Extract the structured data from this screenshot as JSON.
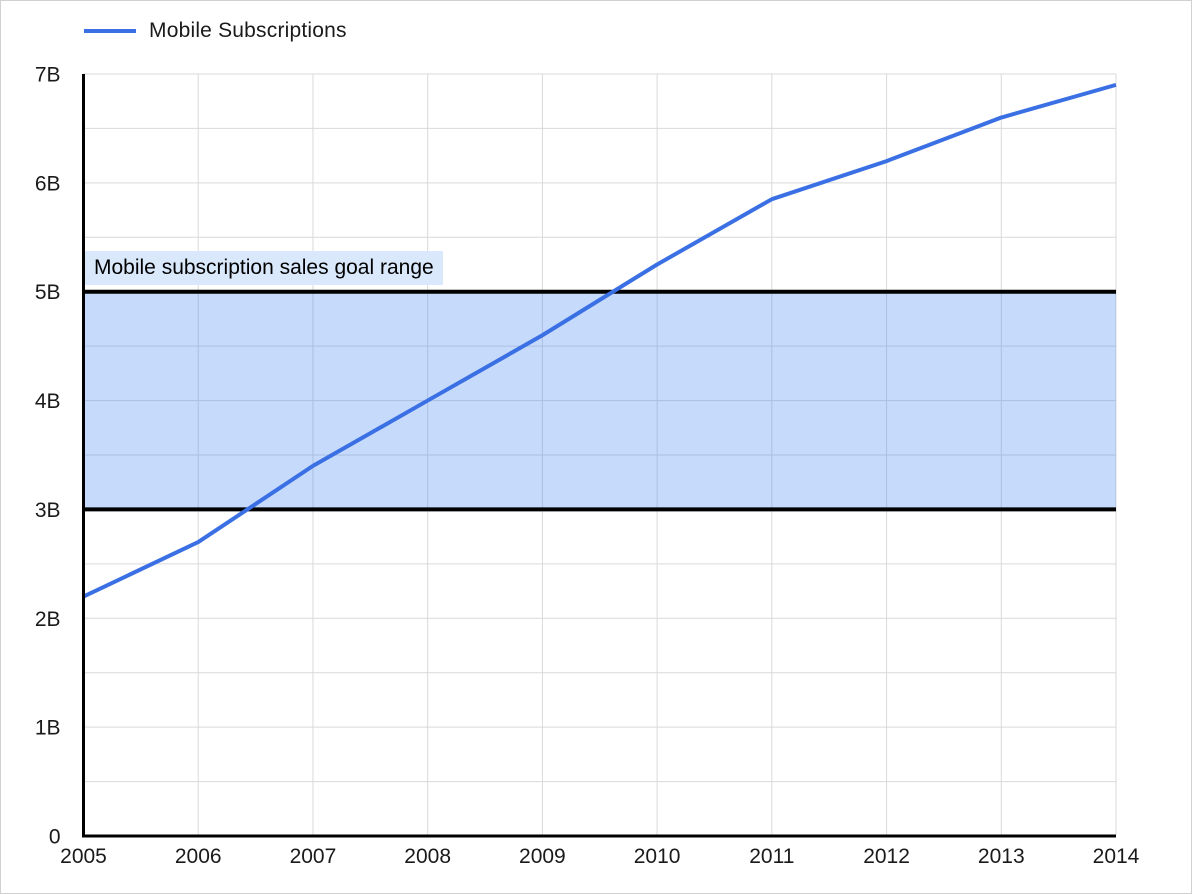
{
  "legend": {
    "items": [
      {
        "label": "Mobile Subscriptions",
        "color": "#3a70e4"
      }
    ],
    "position": "top-left"
  },
  "annotation": {
    "label": "Mobile subscription sales goal range",
    "bg_color": "#d9e8fb",
    "text_color": "#000000"
  },
  "colors": {
    "line": "#3a70e4",
    "band_fill": "rgba(66,133,244,0.30)",
    "band_border": "#000000",
    "gridline": "#d9d9d9",
    "axis": "#000000",
    "tick_label": "#1a1a1a",
    "frame_border": "#d0d0d0",
    "background": "#ffffff"
  },
  "chart_data": {
    "type": "line",
    "title": "",
    "xlabel": "",
    "ylabel": "",
    "categories": [
      2005,
      2006,
      2007,
      2008,
      2009,
      2010,
      2011,
      2012,
      2013,
      2014
    ],
    "x_tick_labels": [
      "2005",
      "2006",
      "2007",
      "2008",
      "2009",
      "2010",
      "2011",
      "2012",
      "2013",
      "2014"
    ],
    "series": [
      {
        "name": "Mobile Subscriptions",
        "color": "#3a70e4",
        "values_billions": [
          2.2,
          2.7,
          3.4,
          4.0,
          4.6,
          5.25,
          5.85,
          6.2,
          6.6,
          6.9
        ]
      }
    ],
    "y_unit": "billions",
    "ylim_billions": [
      0,
      7
    ],
    "y_tick_labels": [
      "0",
      "1B",
      "2B",
      "3B",
      "4B",
      "5B",
      "6B",
      "7B"
    ],
    "y_tick_values_billions": [
      0,
      1,
      2,
      3,
      4,
      5,
      6,
      7
    ],
    "y_gridline_step_billions": 0.5,
    "grid": true,
    "legend_position": "top-left",
    "reference_band": {
      "label": "Mobile subscription sales goal range",
      "from_billions": 3,
      "to_billions": 5
    }
  }
}
